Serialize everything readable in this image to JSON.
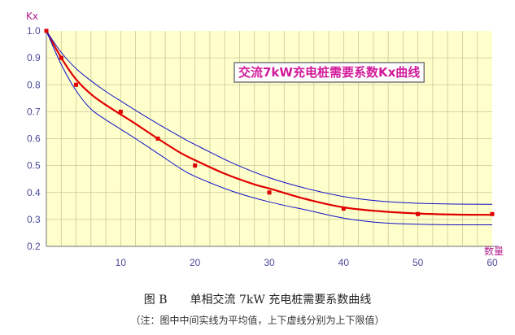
{
  "chart_data": {
    "type": "line",
    "title": "交流7kW充电桩需要系数Kx曲线",
    "ylabel": "Kx",
    "xlabel": "数量",
    "xlim": [
      0,
      60
    ],
    "ylim": [
      0.2,
      1.0
    ],
    "x_ticks": [
      10,
      20,
      30,
      40,
      50,
      60
    ],
    "y_ticks": [
      1.0,
      0.9,
      0.8,
      0.7,
      0.6,
      0.5,
      0.4,
      0.3,
      0.2
    ],
    "grid": true,
    "colors": {
      "background": "#ffffcc",
      "grid": "#c9c99a",
      "axis": "#8a8a8a",
      "mean": "#e00000",
      "bounds": "#1010c8",
      "title_box": "#ffffff",
      "title_text": "#d21a9a"
    },
    "series": [
      {
        "style": "solid",
        "x": [
          0,
          2,
          4,
          6,
          8,
          10,
          12,
          15,
          18,
          20,
          24,
          28,
          30,
          35,
          40,
          45,
          50,
          55,
          60
        ],
        "values": [
          1.0,
          0.9,
          0.82,
          0.765,
          0.725,
          0.69,
          0.655,
          0.6,
          0.548,
          0.52,
          0.47,
          0.43,
          0.415,
          0.375,
          0.345,
          0.33,
          0.322,
          0.318,
          0.317
        ]
      },
      {
        "style": "thin",
        "x": [
          0,
          2,
          4,
          6,
          8,
          10,
          12,
          15,
          18,
          20,
          25,
          30,
          35,
          40,
          45,
          50,
          55,
          60
        ],
        "values": [
          1.0,
          0.92,
          0.86,
          0.815,
          0.775,
          0.74,
          0.705,
          0.655,
          0.608,
          0.578,
          0.51,
          0.455,
          0.415,
          0.385,
          0.368,
          0.36,
          0.357,
          0.356
        ]
      },
      {
        "style": "thin",
        "x": [
          0,
          2,
          4,
          6,
          8,
          10,
          12,
          15,
          18,
          20,
          25,
          30,
          35,
          40,
          45,
          50,
          55,
          60
        ],
        "values": [
          1.0,
          0.875,
          0.778,
          0.71,
          0.67,
          0.635,
          0.6,
          0.545,
          0.49,
          0.46,
          0.405,
          0.365,
          0.335,
          0.305,
          0.288,
          0.282,
          0.28,
          0.28
        ]
      }
    ],
    "markers": {
      "x": [
        0,
        2,
        4,
        10,
        15,
        20,
        30,
        40,
        50,
        60
      ],
      "values": [
        1.0,
        0.9,
        0.8,
        0.7,
        0.6,
        0.5,
        0.4,
        0.34,
        0.32,
        0.32
      ]
    }
  },
  "caption": {
    "main": "图 B　　单相交流 7kW 充电桩需要系数曲线",
    "note": "（注：图中中间实线为平均值，上下虚线分别为上下限值）"
  }
}
